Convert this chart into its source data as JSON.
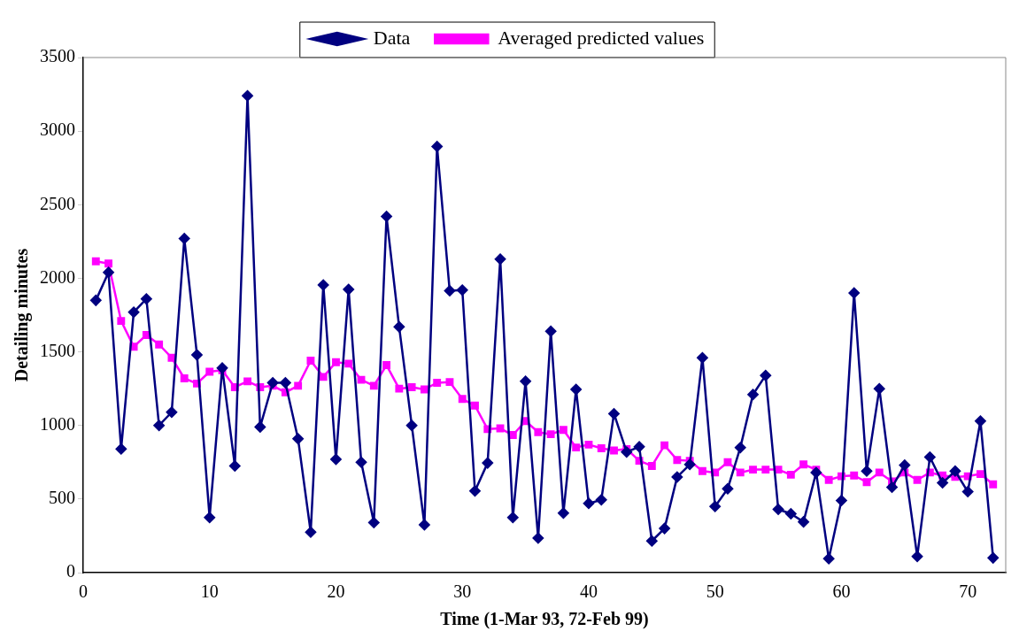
{
  "chart_data": {
    "type": "line",
    "xlabel": "Time (1-Mar 93, 72-Feb 99)",
    "ylabel": "Detailing minutes",
    "x": [
      1,
      2,
      3,
      4,
      5,
      6,
      7,
      8,
      9,
      10,
      11,
      12,
      13,
      14,
      15,
      16,
      17,
      18,
      19,
      20,
      21,
      22,
      23,
      24,
      25,
      26,
      27,
      28,
      29,
      30,
      31,
      32,
      33,
      34,
      35,
      36,
      37,
      38,
      39,
      40,
      41,
      42,
      43,
      44,
      45,
      46,
      47,
      48,
      49,
      50,
      51,
      52,
      53,
      54,
      55,
      56,
      57,
      58,
      59,
      60,
      61,
      62,
      63,
      64,
      65,
      66,
      67,
      68,
      69,
      70,
      71,
      72
    ],
    "series": [
      {
        "name": "Data",
        "color": "#000080",
        "marker": "diamond",
        "values": [
          1850,
          2040,
          840,
          1770,
          1860,
          1000,
          1090,
          2270,
          1480,
          375,
          1390,
          725,
          3240,
          990,
          1290,
          1290,
          910,
          275,
          1955,
          770,
          1925,
          750,
          340,
          2420,
          1670,
          1000,
          325,
          2895,
          1915,
          1920,
          555,
          745,
          2130,
          375,
          1300,
          235,
          1640,
          405,
          1245,
          470,
          495,
          1080,
          820,
          855,
          215,
          300,
          650,
          735,
          1460,
          450,
          570,
          850,
          1210,
          1340,
          430,
          400,
          345,
          680,
          95,
          490,
          1900,
          690,
          1250,
          580,
          730,
          110,
          785,
          610,
          690,
          550,
          1030,
          100
        ]
      },
      {
        "name": "Averaged predicted values",
        "color": "#ff00ff",
        "marker": "square",
        "values": [
          2115,
          2100,
          1710,
          1535,
          1615,
          1550,
          1460,
          1320,
          1285,
          1365,
          1375,
          1260,
          1300,
          1260,
          1270,
          1225,
          1270,
          1440,
          1330,
          1430,
          1420,
          1310,
          1270,
          1410,
          1250,
          1260,
          1245,
          1290,
          1295,
          1180,
          1135,
          975,
          980,
          935,
          1030,
          955,
          940,
          970,
          850,
          870,
          845,
          830,
          840,
          760,
          725,
          865,
          765,
          760,
          690,
          680,
          750,
          680,
          700,
          700,
          700,
          665,
          735,
          700,
          630,
          655,
          660,
          615,
          680,
          620,
          680,
          630,
          680,
          660,
          650,
          655,
          670,
          600
        ]
      }
    ],
    "xlim": [
      0,
      73
    ],
    "xticks": [
      0,
      10,
      20,
      30,
      40,
      50,
      60,
      70
    ],
    "ylim": [
      0,
      3500
    ],
    "yticks": [
      0,
      500,
      1000,
      1500,
      2000,
      2500,
      3000,
      3500
    ],
    "grid": false,
    "legend": "top",
    "line_style": "solid"
  }
}
